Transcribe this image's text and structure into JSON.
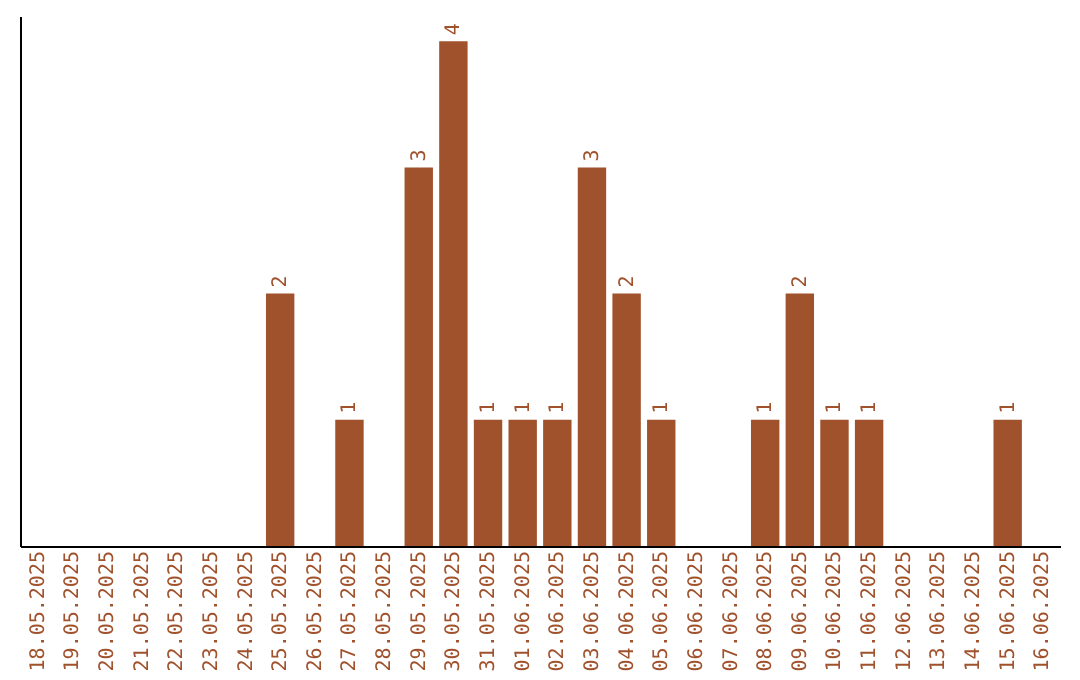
{
  "chart_data": {
    "type": "bar",
    "categories": [
      "18.05.2025",
      "19.05.2025",
      "20.05.2025",
      "21.05.2025",
      "22.05.2025",
      "23.05.2025",
      "24.05.2025",
      "25.05.2025",
      "26.05.2025",
      "27.05.2025",
      "28.05.2025",
      "29.05.2025",
      "30.05.2025",
      "31.05.2025",
      "01.06.2025",
      "02.06.2025",
      "03.06.2025",
      "04.06.2025",
      "05.06.2025",
      "06.06.2025",
      "07.06.2025",
      "08.06.2025",
      "09.06.2025",
      "10.06.2025",
      "11.06.2025",
      "12.06.2025",
      "13.06.2025",
      "14.06.2025",
      "15.06.2025",
      "16.06.2025"
    ],
    "values": [
      0,
      0,
      0,
      0,
      0,
      0,
      0,
      2,
      0,
      1,
      0,
      3,
      4,
      1,
      1,
      1,
      3,
      2,
      1,
      0,
      0,
      1,
      2,
      1,
      1,
      0,
      0,
      0,
      1,
      0
    ],
    "value_labels": [
      null,
      null,
      null,
      null,
      null,
      null,
      null,
      "2",
      null,
      "1",
      null,
      "3",
      "4",
      "1",
      "1",
      "1",
      "3",
      "2",
      "1",
      null,
      null,
      "1",
      "2",
      "1",
      "1",
      null,
      null,
      null,
      "1",
      null
    ],
    "color": "#a0522d",
    "ylim": [
      0,
      4.2
    ],
    "tick_labels": "x",
    "grid": false
  }
}
